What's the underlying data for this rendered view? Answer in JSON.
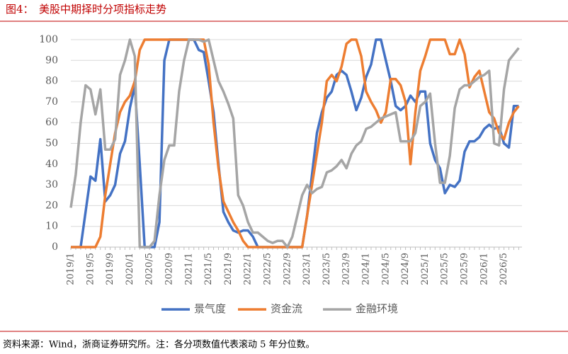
{
  "chart_data": {
    "type": "line",
    "figure_label": "图4：",
    "title": "美股中期择时分项指标走势",
    "source": "资料来源：Wind，浙商证券研究所。注：各分项数值代表滚动 5 年分位数。",
    "categories": [
      "2019/1",
      null,
      null,
      null,
      "2019/5",
      null,
      null,
      null,
      "2019/9",
      null,
      null,
      null,
      "2020/1",
      null,
      null,
      null,
      "2020/5",
      null,
      null,
      null,
      "2020/9",
      null,
      null,
      null,
      "2021/1",
      null,
      null,
      null,
      "2021/5",
      null,
      null,
      null,
      "2021/9",
      null,
      null,
      null,
      "2022/1",
      null,
      null,
      null,
      "2022/5",
      null,
      null,
      null,
      "2022/9",
      null,
      null,
      null,
      "2023/1",
      null,
      null,
      null,
      "2023/5",
      null,
      null,
      null,
      "2023/9",
      null,
      null,
      null,
      "2024/1",
      null,
      null,
      null,
      "2024/5",
      null,
      null,
      null,
      "2024/9",
      null,
      null,
      null,
      "2025/1",
      null,
      null,
      null,
      "2025/5",
      null,
      null,
      null,
      "2025/9",
      null,
      null,
      null,
      "2026/1",
      null,
      null,
      null,
      "2026/5",
      null,
      null,
      null
    ],
    "series": [
      {
        "name": "景气度",
        "color": "#4472c4",
        "values": [
          0,
          0,
          0,
          17,
          34,
          32,
          52,
          22,
          25,
          30,
          45,
          51,
          67,
          78,
          40,
          0,
          0,
          0,
          12,
          90,
          100,
          100,
          100,
          100,
          100,
          100,
          95,
          94,
          80,
          65,
          40,
          17,
          12,
          8,
          7,
          8,
          8,
          5,
          0,
          0,
          0,
          0,
          0,
          0,
          0,
          0,
          0,
          0,
          15,
          35,
          55,
          65,
          72,
          75,
          83,
          85,
          83,
          75,
          66,
          72,
          82,
          88,
          100,
          100,
          90,
          80,
          68,
          66,
          68,
          73,
          70,
          75,
          75,
          50,
          42,
          38,
          26,
          30,
          29,
          32,
          46,
          51,
          51,
          53,
          57,
          59,
          57,
          58,
          50,
          48,
          68,
          68
        ]
      },
      {
        "name": "资金流",
        "color": "#ed7d31",
        "values": [
          0,
          0,
          0,
          0,
          0,
          0,
          5,
          25,
          40,
          55,
          65,
          70,
          73,
          80,
          95,
          100,
          100,
          100,
          100,
          100,
          100,
          100,
          100,
          100,
          100,
          100,
          100,
          100,
          88,
          60,
          38,
          22,
          17,
          12,
          8,
          3,
          0,
          0,
          0,
          0,
          0,
          0,
          0,
          0,
          0,
          0,
          0,
          0,
          15,
          30,
          45,
          60,
          80,
          83,
          80,
          87,
          98,
          100,
          100,
          92,
          75,
          70,
          66,
          60,
          65,
          81,
          81,
          78,
          70,
          40,
          65,
          85,
          92,
          100,
          100,
          100,
          100,
          93,
          93,
          100,
          93,
          77,
          82,
          85,
          75,
          65,
          62,
          55,
          52,
          60,
          65,
          68
        ]
      },
      {
        "name": "金融环境",
        "color": "#a5a5a5",
        "values": [
          19,
          35,
          60,
          78,
          76,
          64,
          76,
          47,
          47,
          52,
          83,
          90,
          100,
          92,
          0,
          0,
          0,
          3,
          25,
          42,
          49,
          49,
          75,
          90,
          100,
          100,
          100,
          99,
          100,
          90,
          80,
          75,
          69,
          62,
          25,
          20,
          12,
          7,
          7,
          5,
          3,
          2,
          3,
          3,
          0,
          5,
          15,
          25,
          30,
          26,
          28,
          29,
          36,
          37,
          39,
          42,
          38,
          45,
          49,
          51,
          57,
          58,
          60,
          62,
          63,
          64,
          65,
          51,
          51,
          51,
          55,
          68,
          70,
          74,
          50,
          31,
          31,
          44,
          67,
          76,
          78,
          78,
          80,
          82,
          83,
          85,
          50,
          49,
          76,
          90,
          93,
          96
        ]
      }
    ],
    "ylim": [
      0,
      100
    ],
    "yticks": [
      0,
      10,
      20,
      30,
      40,
      50,
      60,
      70,
      80,
      90,
      100
    ],
    "grid": true,
    "legend": "bottom"
  }
}
